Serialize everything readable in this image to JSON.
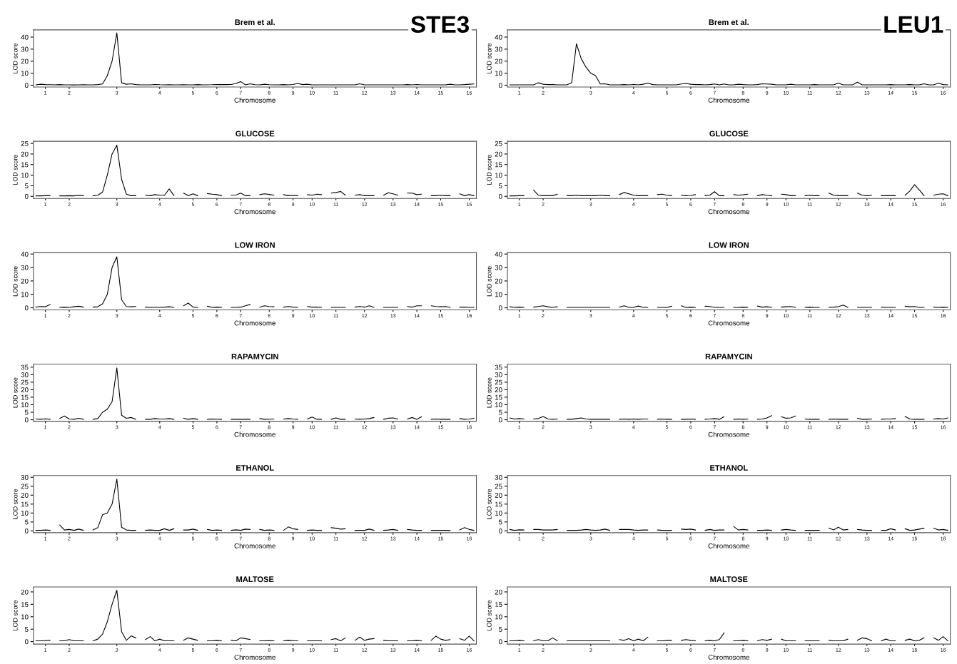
{
  "chart_data": [
    {
      "type": "line",
      "title": "Brem et al.",
      "xlabel": "Chromosome",
      "ylabel": "LOD score",
      "annotations": [
        "STE3"
      ],
      "color": "#000000",
      "grid": false,
      "ylim": [
        -1.5,
        46
      ],
      "yticks": [
        0,
        10,
        20,
        30,
        40
      ],
      "categories": [
        null,
        null,
        "1",
        null,
        null,
        null,
        null,
        "2",
        null,
        null,
        null,
        null,
        null,
        null,
        null,
        null,
        null,
        "3",
        null,
        null,
        null,
        null,
        null,
        null,
        null,
        null,
        "4",
        null,
        null,
        null,
        null,
        null,
        null,
        "5",
        null,
        null,
        null,
        null,
        "6",
        null,
        null,
        null,
        null,
        "7",
        null,
        null,
        null,
        null,
        null,
        "8",
        null,
        null,
        null,
        null,
        "9",
        null,
        null,
        null,
        "10",
        null,
        null,
        null,
        null,
        "11",
        null,
        null,
        null,
        null,
        null,
        "12",
        null,
        null,
        null,
        null,
        null,
        "13",
        null,
        null,
        null,
        null,
        "14",
        null,
        null,
        null,
        null,
        "15",
        null,
        null,
        null,
        null,
        null,
        "16",
        null
      ],
      "values": [
        0.3,
        0.8,
        0.5,
        0.4,
        0.3,
        0.5,
        0.3,
        0.3,
        0.2,
        0.3,
        0.4,
        0.3,
        0.3,
        0.5,
        1,
        8,
        20,
        43.5,
        2,
        0.8,
        1.2,
        0.5,
        0.3,
        0.3,
        0.3,
        0.6,
        0.4,
        0.3,
        0.4,
        0.3,
        0.3,
        0.4,
        0.3,
        0.3,
        0.5,
        0.3,
        0.3,
        0.4,
        0.6,
        0.5,
        0.5,
        0.6,
        1.5,
        3.0,
        0.3,
        1.2,
        0.4,
        0.3,
        0.8,
        0.4,
        0.3,
        0.3,
        0.5,
        0.3,
        0.6,
        1.5,
        0.5,
        0.8,
        0.3,
        0.3,
        0.3,
        0.3,
        0.3,
        0.3,
        0.3,
        0.3,
        0.3,
        0.3,
        1.2,
        0.3,
        0.3,
        0.3,
        0.3,
        0.3,
        0.3,
        0.3,
        0.3,
        0.3,
        0.5,
        0.3,
        0.6,
        0.3,
        0.3,
        0.3,
        0.3,
        0.3,
        0.3,
        0.8,
        0.3,
        0.3,
        0.5,
        0.8,
        1.0
      ]
    },
    {
      "type": "line",
      "title": "Brem et al.",
      "xlabel": "Chromosome",
      "ylabel": "LOD score",
      "annotations": [
        "LEU1"
      ],
      "color": "#000000",
      "grid": false,
      "ylim": [
        -1.5,
        46
      ],
      "yticks": [
        0,
        10,
        20,
        30,
        40
      ],
      "categories": [
        null,
        null,
        "1",
        null,
        null,
        null,
        null,
        "2",
        null,
        null,
        null,
        null,
        null,
        null,
        null,
        null,
        null,
        "3",
        null,
        null,
        null,
        null,
        null,
        null,
        null,
        null,
        "4",
        null,
        null,
        null,
        null,
        null,
        null,
        "5",
        null,
        null,
        null,
        null,
        "6",
        null,
        null,
        null,
        null,
        "7",
        null,
        null,
        null,
        null,
        null,
        "8",
        null,
        null,
        null,
        null,
        "9",
        null,
        null,
        null,
        "10",
        null,
        null,
        null,
        null,
        "11",
        null,
        null,
        null,
        null,
        null,
        "12",
        null,
        null,
        null,
        null,
        null,
        "13",
        null,
        null,
        null,
        null,
        "14",
        null,
        null,
        null,
        null,
        "15",
        null,
        null,
        null,
        null,
        null,
        "16",
        null
      ],
      "values": [
        0.3,
        0.3,
        0.3,
        0.3,
        0.3,
        0.3,
        2.0,
        0.8,
        0.5,
        0.5,
        0.3,
        0.3,
        0.3,
        2,
        34.5,
        22,
        15,
        10,
        8,
        1,
        1.2,
        0.3,
        0.3,
        0.3,
        0.5,
        0.3,
        0.6,
        0.3,
        0.8,
        1.8,
        0.5,
        0.3,
        0.3,
        0.3,
        0.3,
        0.3,
        1.0,
        1.5,
        0.8,
        0.5,
        0.5,
        0.3,
        0.5,
        1.0,
        0.3,
        1.0,
        0.3,
        0.3,
        0.8,
        0.5,
        0.3,
        0.3,
        0.5,
        1.2,
        1.0,
        0.8,
        0.3,
        0.3,
        0.3,
        0.8,
        0.3,
        0.3,
        0.3,
        0.3,
        0.5,
        0.3,
        0.3,
        0.3,
        0.3,
        1.8,
        0.3,
        0.3,
        0.3,
        2.5,
        0.3,
        0.3,
        0.3,
        0.3,
        0.3,
        0.3,
        0.5,
        0.3,
        0.3,
        0.3,
        0.5,
        0.3,
        0.3,
        1.2,
        0.3,
        0.3,
        1.8,
        0.5,
        0.3
      ]
    },
    {
      "type": "line",
      "title": "GLUCOSE",
      "xlabel": "Chromosome",
      "ylabel": "LOD score",
      "color": "#000000",
      "grid": false,
      "ylim": [
        -1,
        26
      ],
      "yticks": [
        0,
        5,
        10,
        15,
        20,
        25
      ],
      "categories": [
        null,
        null,
        "1",
        null,
        null,
        null,
        null,
        "2",
        null,
        null,
        null,
        null,
        null,
        null,
        null,
        null,
        null,
        "3",
        null,
        null,
        null,
        null,
        null,
        null,
        null,
        null,
        "4",
        null,
        null,
        null,
        null,
        null,
        null,
        "5",
        null,
        null,
        null,
        null,
        "6",
        null,
        null,
        null,
        null,
        "7",
        null,
        null,
        null,
        null,
        null,
        "8",
        null,
        null,
        null,
        null,
        "9",
        null,
        null,
        null,
        "10",
        null,
        null,
        null,
        null,
        "11",
        null,
        null,
        null,
        null,
        null,
        "12",
        null,
        null,
        null,
        null,
        null,
        "13",
        null,
        null,
        null,
        null,
        "14",
        null,
        null,
        null,
        null,
        "15",
        null,
        null,
        null,
        null,
        null,
        "16",
        null
      ],
      "values": [
        0.2,
        0.2,
        0.3,
        0.3,
        null,
        0.2,
        0.2,
        0.3,
        0.2,
        0.4,
        0.3,
        null,
        0.3,
        0.5,
        2,
        10,
        20,
        24.2,
        8,
        1,
        0.3,
        0.3,
        null,
        0.5,
        0.3,
        0.8,
        0.5,
        0.5,
        3.5,
        0.3,
        null,
        1.5,
        0.3,
        1.2,
        0.3,
        null,
        1.3,
        1.0,
        0.8,
        0.3,
        null,
        0.5,
        0.6,
        1.5,
        0.3,
        0.3,
        null,
        0.8,
        1.2,
        0.9,
        0.5,
        null,
        0.8,
        0.3,
        0.4,
        0.3,
        null,
        0.8,
        0.5,
        1.0,
        0.8,
        null,
        1.5,
        1.8,
        2.3,
        0.5,
        null,
        0.5,
        0.8,
        0.3,
        0.3,
        0.3,
        null,
        0.5,
        1.7,
        1.2,
        0.5,
        null,
        1.5,
        1.5,
        0.8,
        1.0,
        null,
        0.3,
        0.3,
        0.5,
        0.3,
        0.3,
        null,
        1.2,
        0.3,
        0.8,
        0.3
      ]
    },
    {
      "type": "line",
      "title": "GLUCOSE",
      "xlabel": "Chromosome",
      "ylabel": "LOD score",
      "color": "#000000",
      "grid": false,
      "ylim": [
        -1,
        26
      ],
      "yticks": [
        0,
        5,
        10,
        15,
        20,
        25
      ],
      "categories": [
        null,
        null,
        "1",
        null,
        null,
        null,
        null,
        "2",
        null,
        null,
        null,
        null,
        null,
        null,
        null,
        null,
        null,
        "3",
        null,
        null,
        null,
        null,
        null,
        null,
        null,
        null,
        "4",
        null,
        null,
        null,
        null,
        null,
        null,
        "5",
        null,
        null,
        null,
        null,
        "6",
        null,
        null,
        null,
        null,
        "7",
        null,
        null,
        null,
        null,
        null,
        "8",
        null,
        null,
        null,
        null,
        "9",
        null,
        null,
        null,
        "10",
        null,
        null,
        null,
        null,
        "11",
        null,
        null,
        null,
        null,
        null,
        "12",
        null,
        null,
        null,
        null,
        null,
        "13",
        null,
        null,
        null,
        null,
        "14",
        null,
        null,
        null,
        null,
        "15",
        null,
        null,
        null,
        null,
        null,
        "16",
        null
      ],
      "values": [
        0.2,
        0.2,
        0.3,
        0.3,
        null,
        3,
        0.5,
        0.3,
        0.3,
        0.3,
        1.0,
        null,
        0.3,
        0.3,
        0.5,
        0.3,
        0.3,
        0.3,
        0.3,
        0.5,
        0.3,
        0.3,
        null,
        0.8,
        1.8,
        1.2,
        0.5,
        0.3,
        0.3,
        0.3,
        null,
        0.8,
        1.0,
        0.5,
        0.3,
        null,
        0.5,
        0.3,
        0.4,
        0.8,
        null,
        0.3,
        0.5,
        2.2,
        0.3,
        0.3,
        null,
        0.8,
        0.5,
        0.7,
        1.0,
        null,
        0.3,
        0.8,
        0.5,
        0.3,
        null,
        1.0,
        0.8,
        0.3,
        0.3,
        null,
        0.3,
        0.5,
        0.3,
        0.3,
        null,
        1.5,
        0.5,
        0.3,
        0.3,
        0.3,
        null,
        1.5,
        0.5,
        0.3,
        0.5,
        null,
        0.3,
        0.3,
        0.3,
        0.3,
        null,
        0.5,
        2.5,
        5.5,
        3.0,
        0.3,
        null,
        0.5,
        1.0,
        1.2,
        0.3
      ]
    },
    {
      "type": "line",
      "title": "LOW IRON",
      "xlabel": "Chromosome",
      "ylabel": "LOD score",
      "color": "#000000",
      "grid": false,
      "ylim": [
        -1.5,
        41
      ],
      "yticks": [
        0,
        10,
        20,
        30,
        40
      ],
      "categories": [
        null,
        null,
        "1",
        null,
        null,
        null,
        null,
        "2",
        null,
        null,
        null,
        null,
        null,
        null,
        null,
        null,
        null,
        "3",
        null,
        null,
        null,
        null,
        null,
        null,
        null,
        null,
        "4",
        null,
        null,
        null,
        null,
        null,
        null,
        "5",
        null,
        null,
        null,
        null,
        "6",
        null,
        null,
        null,
        null,
        "7",
        null,
        null,
        null,
        null,
        null,
        "8",
        null,
        null,
        null,
        null,
        "9",
        null,
        null,
        null,
        "10",
        null,
        null,
        null,
        null,
        "11",
        null,
        null,
        null,
        null,
        null,
        "12",
        null,
        null,
        null,
        null,
        null,
        "13",
        null,
        null,
        null,
        null,
        "14",
        null,
        null,
        null,
        null,
        "15",
        null,
        null,
        null,
        null,
        null,
        "16",
        null
      ],
      "values": [
        0.5,
        1.0,
        0.8,
        2.5,
        null,
        0.3,
        0.5,
        0.3,
        0.8,
        1.2,
        0.5,
        null,
        0.5,
        0.8,
        3,
        10,
        30,
        38,
        6,
        1,
        0.8,
        1,
        null,
        0.5,
        0.3,
        0.3,
        0.3,
        0.5,
        0.8,
        0.3,
        null,
        1.5,
        3.5,
        0.5,
        0.3,
        null,
        1.2,
        0.3,
        0.5,
        0.3,
        null,
        0.3,
        0.3,
        0.5,
        1.5,
        2.5,
        null,
        0.5,
        1.5,
        1.0,
        0.8,
        null,
        0.5,
        1.0,
        0.5,
        0.3,
        null,
        1.0,
        0.5,
        0.5,
        0.3,
        null,
        0.3,
        0.3,
        0.3,
        0.3,
        null,
        0.5,
        1.0,
        0.5,
        1.5,
        0.3,
        null,
        0.3,
        0.3,
        0.3,
        0.3,
        null,
        1.0,
        0.5,
        1.5,
        1.5,
        null,
        1.5,
        1.0,
        0.8,
        1.0,
        0.3,
        null,
        0.5,
        0.5,
        0.3,
        0.3
      ]
    },
    {
      "type": "line",
      "title": "LOW IRON",
      "xlabel": "Chromosome",
      "ylabel": "LOD score",
      "color": "#000000",
      "grid": false,
      "ylim": [
        -1.5,
        41
      ],
      "yticks": [
        0,
        10,
        20,
        30,
        40
      ],
      "categories": [
        null,
        null,
        "1",
        null,
        null,
        null,
        null,
        "2",
        null,
        null,
        null,
        null,
        null,
        null,
        null,
        null,
        null,
        "3",
        null,
        null,
        null,
        null,
        null,
        null,
        null,
        null,
        "4",
        null,
        null,
        null,
        null,
        null,
        null,
        "5",
        null,
        null,
        null,
        null,
        "6",
        null,
        null,
        null,
        null,
        "7",
        null,
        null,
        null,
        null,
        null,
        "8",
        null,
        null,
        null,
        null,
        "9",
        null,
        null,
        null,
        "10",
        null,
        null,
        null,
        null,
        "11",
        null,
        null,
        null,
        null,
        null,
        "12",
        null,
        null,
        null,
        null,
        null,
        "13",
        null,
        null,
        null,
        null,
        "14",
        null,
        null,
        null,
        null,
        "15",
        null,
        null,
        null,
        null,
        null,
        "16",
        null
      ],
      "values": [
        0.8,
        0.3,
        0.5,
        0.3,
        null,
        0.5,
        1.0,
        1.5,
        0.8,
        0.3,
        0.8,
        null,
        0.3,
        0.3,
        0.3,
        0.3,
        0.3,
        0.3,
        0.3,
        0.3,
        0.3,
        0.3,
        null,
        0.5,
        1.5,
        0.3,
        0.3,
        1.3,
        0.3,
        0.3,
        null,
        0.3,
        0.3,
        0.3,
        1.2,
        null,
        1.5,
        0.3,
        0.5,
        0.3,
        null,
        1.2,
        1.0,
        0.3,
        0.3,
        0.3,
        null,
        0.3,
        0.3,
        0.5,
        0.3,
        null,
        1.3,
        0.5,
        0.8,
        0.3,
        null,
        0.5,
        0.8,
        1.0,
        0.3,
        null,
        0.3,
        0.5,
        0.3,
        0.3,
        null,
        0.3,
        0.5,
        0.8,
        2.0,
        0.3,
        null,
        0.3,
        0.3,
        0.3,
        0.3,
        null,
        0.5,
        0.3,
        0.3,
        0.3,
        null,
        1.2,
        0.8,
        1.0,
        0.3,
        0.3,
        null,
        0.5,
        0.3,
        0.5,
        0.3
      ]
    },
    {
      "type": "line",
      "title": "RAPAMYCIN",
      "xlabel": "Chromosome",
      "ylabel": "LOD score",
      "color": "#000000",
      "grid": false,
      "ylim": [
        -1,
        37
      ],
      "yticks": [
        0,
        5,
        10,
        15,
        20,
        25,
        30,
        35
      ],
      "categories": [
        null,
        null,
        "1",
        null,
        null,
        null,
        null,
        "2",
        null,
        null,
        null,
        null,
        null,
        null,
        null,
        null,
        null,
        "3",
        null,
        null,
        null,
        null,
        null,
        null,
        null,
        null,
        "4",
        null,
        null,
        null,
        null,
        null,
        null,
        "5",
        null,
        null,
        null,
        null,
        "6",
        null,
        null,
        null,
        null,
        "7",
        null,
        null,
        null,
        null,
        null,
        "8",
        null,
        null,
        null,
        null,
        "9",
        null,
        null,
        null,
        "10",
        null,
        null,
        null,
        null,
        "11",
        null,
        null,
        null,
        null,
        null,
        "12",
        null,
        null,
        null,
        null,
        null,
        "13",
        null,
        null,
        null,
        null,
        "14",
        null,
        null,
        null,
        null,
        "15",
        null,
        null,
        null,
        null,
        null,
        "16",
        null
      ],
      "values": [
        0.5,
        0.3,
        0.6,
        0.3,
        null,
        0.8,
        2.5,
        0.5,
        0.3,
        1.0,
        0.3,
        null,
        0.3,
        0.8,
        5,
        7,
        12,
        34.5,
        3,
        1,
        1.5,
        0.3,
        null,
        0.3,
        0.3,
        0.8,
        0.5,
        0.5,
        0.8,
        0.3,
        null,
        1.0,
        0.3,
        0.8,
        0.3,
        null,
        0.3,
        0.5,
        0.4,
        0.3,
        null,
        0.3,
        0.3,
        0.3,
        0.3,
        0.3,
        null,
        0.8,
        0.3,
        0.4,
        0.5,
        null,
        0.5,
        0.8,
        0.5,
        0.3,
        null,
        0.5,
        1.8,
        0.3,
        0.3,
        null,
        0.3,
        1.2,
        0.3,
        0.3,
        null,
        0.5,
        0.3,
        0.5,
        0.8,
        1.5,
        null,
        0.3,
        1.0,
        1.2,
        0.5,
        null,
        0.5,
        1.5,
        0.3,
        2.0,
        null,
        0.3,
        0.5,
        0.3,
        0.3,
        0.3,
        null,
        0.8,
        0.3,
        0.5,
        1.0
      ]
    },
    {
      "type": "line",
      "title": "RAPAMYCIN",
      "xlabel": "Chromosome",
      "ylabel": "LOD score",
      "color": "#000000",
      "grid": false,
      "ylim": [
        -1,
        37
      ],
      "yticks": [
        0,
        5,
        10,
        15,
        20,
        25,
        30,
        35
      ],
      "categories": [
        null,
        null,
        "1",
        null,
        null,
        null,
        null,
        "2",
        null,
        null,
        null,
        null,
        null,
        null,
        null,
        null,
        null,
        "3",
        null,
        null,
        null,
        null,
        null,
        null,
        null,
        null,
        "4",
        null,
        null,
        null,
        null,
        null,
        null,
        "5",
        null,
        null,
        null,
        null,
        "6",
        null,
        null,
        null,
        null,
        "7",
        null,
        null,
        null,
        null,
        null,
        "8",
        null,
        null,
        null,
        null,
        "9",
        null,
        null,
        null,
        "10",
        null,
        null,
        null,
        null,
        "11",
        null,
        null,
        null,
        null,
        null,
        "12",
        null,
        null,
        null,
        null,
        null,
        "13",
        null,
        null,
        null,
        null,
        "14",
        null,
        null,
        null,
        null,
        "15",
        null,
        null,
        null,
        null,
        null,
        "16",
        null
      ],
      "values": [
        1.2,
        0.5,
        0.8,
        0.5,
        null,
        0.5,
        0.8,
        2.2,
        0.5,
        0.3,
        0.5,
        null,
        0.3,
        0.3,
        0.8,
        1.2,
        0.5,
        0.3,
        0.3,
        0.3,
        0.3,
        0.3,
        null,
        0.3,
        0.5,
        0.3,
        0.5,
        0.3,
        0.5,
        0.5,
        null,
        0.3,
        0.5,
        0.3,
        0.3,
        null,
        0.3,
        0.3,
        0.5,
        0.3,
        null,
        0.3,
        0.5,
        0.8,
        0.3,
        2.0,
        null,
        0.3,
        0.5,
        0.3,
        0.5,
        null,
        0.3,
        0.5,
        1.2,
        2.8,
        null,
        2.0,
        1.0,
        1.2,
        2.5,
        null,
        0.5,
        0.3,
        0.3,
        0.3,
        null,
        0.3,
        0.5,
        0.3,
        0.3,
        0.3,
        null,
        1.0,
        0.3,
        0.3,
        0.5,
        null,
        0.3,
        0.5,
        0.5,
        0.8,
        null,
        2.2,
        0.5,
        0.3,
        0.3,
        0.3,
        null,
        0.5,
        0.8,
        0.5,
        1.2
      ]
    },
    {
      "type": "line",
      "title": "ETHANOL",
      "xlabel": "Chromosome",
      "ylabel": "LOD score",
      "color": "#000000",
      "grid": false,
      "ylim": [
        -1,
        31
      ],
      "yticks": [
        0,
        5,
        10,
        15,
        20,
        25,
        30
      ],
      "categories": [
        null,
        null,
        "1",
        null,
        null,
        null,
        null,
        "2",
        null,
        null,
        null,
        null,
        null,
        null,
        null,
        null,
        null,
        "3",
        null,
        null,
        null,
        null,
        null,
        null,
        null,
        null,
        "4",
        null,
        null,
        null,
        null,
        null,
        null,
        "5",
        null,
        null,
        null,
        null,
        "6",
        null,
        null,
        null,
        null,
        "7",
        null,
        null,
        null,
        null,
        null,
        "8",
        null,
        null,
        null,
        null,
        "9",
        null,
        null,
        null,
        "10",
        null,
        null,
        null,
        null,
        "11",
        null,
        null,
        null,
        null,
        null,
        "12",
        null,
        null,
        null,
        null,
        null,
        "13",
        null,
        null,
        null,
        null,
        "14",
        null,
        null,
        null,
        null,
        "15",
        null,
        null,
        null,
        null,
        null,
        "16",
        null
      ],
      "values": [
        0.3,
        0.3,
        0.5,
        0.3,
        null,
        3.3,
        0.5,
        0.8,
        0.3,
        1.0,
        0.3,
        null,
        0.5,
        1.8,
        9,
        10,
        15,
        29,
        2,
        0.5,
        0.3,
        0.3,
        null,
        0.3,
        0.5,
        0.3,
        0.3,
        1.2,
        0.3,
        1.2,
        null,
        0.5,
        0.5,
        1.0,
        0.3,
        null,
        0.8,
        0.3,
        0.5,
        0.3,
        null,
        0.3,
        0.6,
        0.3,
        1.0,
        0.8,
        null,
        0.8,
        0.3,
        0.5,
        0.3,
        null,
        0.3,
        2.2,
        1.2,
        0.8,
        null,
        0.3,
        0.5,
        0.3,
        0.3,
        null,
        1.8,
        1.5,
        1.0,
        1.2,
        null,
        0.3,
        0.3,
        0.3,
        1.0,
        0.3,
        null,
        0.3,
        0.5,
        0.8,
        0.3,
        null,
        0.8,
        0.5,
        0.3,
        0.3,
        null,
        0.3,
        0.3,
        0.3,
        0.3,
        0.3,
        null,
        0.5,
        1.8,
        0.8,
        0.3
      ]
    },
    {
      "type": "line",
      "title": "ETHANOL",
      "xlabel": "Chromosome",
      "ylabel": "LOD score",
      "color": "#000000",
      "grid": false,
      "ylim": [
        -1,
        31
      ],
      "yticks": [
        0,
        5,
        10,
        15,
        20,
        25,
        30
      ],
      "categories": [
        null,
        null,
        "1",
        null,
        null,
        null,
        null,
        "2",
        null,
        null,
        null,
        null,
        null,
        null,
        null,
        null,
        null,
        "3",
        null,
        null,
        null,
        null,
        null,
        null,
        null,
        null,
        "4",
        null,
        null,
        null,
        null,
        null,
        null,
        "5",
        null,
        null,
        null,
        null,
        "6",
        null,
        null,
        null,
        null,
        "7",
        null,
        null,
        null,
        null,
        null,
        "8",
        null,
        null,
        null,
        null,
        "9",
        null,
        null,
        null,
        "10",
        null,
        null,
        null,
        null,
        "11",
        null,
        null,
        null,
        null,
        null,
        "12",
        null,
        null,
        null,
        null,
        null,
        "13",
        null,
        null,
        null,
        null,
        "14",
        null,
        null,
        null,
        null,
        "15",
        null,
        null,
        null,
        null,
        null,
        "16",
        null
      ],
      "values": [
        0.8,
        0.3,
        0.6,
        0.5,
        null,
        0.8,
        0.8,
        0.5,
        0.5,
        0.5,
        0.8,
        null,
        0.3,
        0.3,
        0.3,
        0.5,
        0.8,
        0.5,
        0.3,
        0.5,
        1.0,
        0.3,
        null,
        0.8,
        0.8,
        0.8,
        0.5,
        0.3,
        0.5,
        0.5,
        null,
        0.5,
        0.3,
        0.3,
        0.3,
        null,
        1.0,
        0.8,
        1.0,
        0.5,
        null,
        0.3,
        0.8,
        0.3,
        0.5,
        0.5,
        null,
        2.5,
        0.5,
        0.8,
        0.5,
        null,
        0.3,
        0.3,
        0.5,
        0.3,
        null,
        0.5,
        0.8,
        0.5,
        0.3,
        null,
        0.3,
        0.3,
        0.3,
        0.3,
        null,
        1.5,
        0.5,
        2.0,
        0.5,
        0.8,
        null,
        0.8,
        0.5,
        0.3,
        0.3,
        null,
        0.3,
        0.3,
        1.2,
        0.5,
        null,
        1.2,
        0.3,
        0.5,
        1.0,
        1.5,
        null,
        1.5,
        0.5,
        0.8,
        0.3
      ]
    },
    {
      "type": "line",
      "title": "MALTOSE",
      "xlabel": "Chromosome",
      "ylabel": "LOD score",
      "color": "#000000",
      "grid": false,
      "ylim": [
        -1,
        22
      ],
      "yticks": [
        0,
        5,
        10,
        15,
        20
      ],
      "categories": [
        null,
        null,
        "1",
        null,
        null,
        null,
        null,
        "2",
        null,
        null,
        null,
        null,
        null,
        null,
        null,
        null,
        null,
        "3",
        null,
        null,
        null,
        null,
        null,
        null,
        null,
        null,
        "4",
        null,
        null,
        null,
        null,
        null,
        null,
        "5",
        null,
        null,
        null,
        null,
        "6",
        null,
        null,
        null,
        null,
        "7",
        null,
        null,
        null,
        null,
        null,
        "8",
        null,
        null,
        null,
        null,
        "9",
        null,
        null,
        null,
        "10",
        null,
        null,
        null,
        null,
        "11",
        null,
        null,
        null,
        null,
        null,
        "12",
        null,
        null,
        null,
        null,
        null,
        "13",
        null,
        null,
        null,
        null,
        "14",
        null,
        null,
        null,
        null,
        "15",
        null,
        null,
        null,
        null,
        null,
        "16",
        null
      ],
      "values": [
        0.3,
        0.3,
        0.4,
        0.5,
        null,
        0.3,
        0.3,
        0.8,
        0.3,
        0.3,
        0.3,
        null,
        0.3,
        1,
        3,
        8,
        15,
        20.7,
        4,
        0.5,
        2.3,
        1.5,
        null,
        0.8,
        2.0,
        0.3,
        1.0,
        0.3,
        0.3,
        0.3,
        null,
        0.5,
        1.5,
        1.0,
        0.5,
        null,
        0.3,
        0.3,
        0.5,
        0.3,
        null,
        0.5,
        0.3,
        1.5,
        1.2,
        0.8,
        null,
        0.3,
        0.3,
        0.4,
        0.3,
        null,
        0.3,
        0.5,
        0.4,
        0.3,
        null,
        0.3,
        0.3,
        0.3,
        0.3,
        null,
        0.8,
        1.2,
        0.3,
        1.5,
        null,
        0.5,
        1.8,
        0.5,
        1.0,
        1.2,
        null,
        0.5,
        0.3,
        0.3,
        0.3,
        null,
        0.3,
        0.3,
        0.5,
        0.3,
        null,
        0.5,
        2.2,
        1.0,
        0.5,
        0.8,
        null,
        1.2,
        0.5,
        2.2,
        0.3
      ]
    },
    {
      "type": "line",
      "title": "MALTOSE",
      "xlabel": "Chromosome",
      "ylabel": "LOD score",
      "color": "#000000",
      "grid": false,
      "ylim": [
        -1,
        22
      ],
      "yticks": [
        0,
        5,
        10,
        15,
        20
      ],
      "categories": [
        null,
        null,
        "1",
        null,
        null,
        null,
        null,
        "2",
        null,
        null,
        null,
        null,
        null,
        null,
        null,
        null,
        null,
        "3",
        null,
        null,
        null,
        null,
        null,
        null,
        null,
        null,
        "4",
        null,
        null,
        null,
        null,
        null,
        null,
        "5",
        null,
        null,
        null,
        null,
        "6",
        null,
        null,
        null,
        null,
        "7",
        null,
        null,
        null,
        null,
        null,
        "8",
        null,
        null,
        null,
        null,
        "9",
        null,
        null,
        null,
        "10",
        null,
        null,
        null,
        null,
        "11",
        null,
        null,
        null,
        null,
        null,
        "12",
        null,
        null,
        null,
        null,
        null,
        "13",
        null,
        null,
        null,
        null,
        "14",
        null,
        null,
        null,
        null,
        "15",
        null,
        null,
        null,
        null,
        null,
        "16",
        null
      ],
      "values": [
        0.3,
        0.3,
        0.5,
        0.3,
        null,
        0.3,
        0.8,
        0.3,
        0.3,
        1.5,
        0.3,
        null,
        0.3,
        0.3,
        0.3,
        0.3,
        0.3,
        0.3,
        0.3,
        0.3,
        0.3,
        0.3,
        null,
        0.8,
        0.5,
        1.2,
        0.3,
        1.0,
        0.3,
        1.8,
        null,
        0.3,
        0.3,
        0.5,
        0.5,
        null,
        0.5,
        0.8,
        0.5,
        0.3,
        null,
        0.3,
        0.5,
        0.3,
        0.8,
        3.5,
        null,
        0.3,
        0.3,
        0.5,
        0.3,
        null,
        0.3,
        0.8,
        0.5,
        1.0,
        null,
        1.0,
        0.3,
        0.3,
        0.3,
        null,
        0.3,
        0.3,
        0.3,
        0.3,
        null,
        0.5,
        0.3,
        0.3,
        0.3,
        1.0,
        null,
        0.5,
        1.5,
        1.2,
        0.3,
        null,
        0.3,
        1.0,
        0.3,
        0.3,
        null,
        0.5,
        1.0,
        0.3,
        0.5,
        1.5,
        null,
        1.5,
        0.5,
        2.0,
        0.3
      ]
    }
  ]
}
